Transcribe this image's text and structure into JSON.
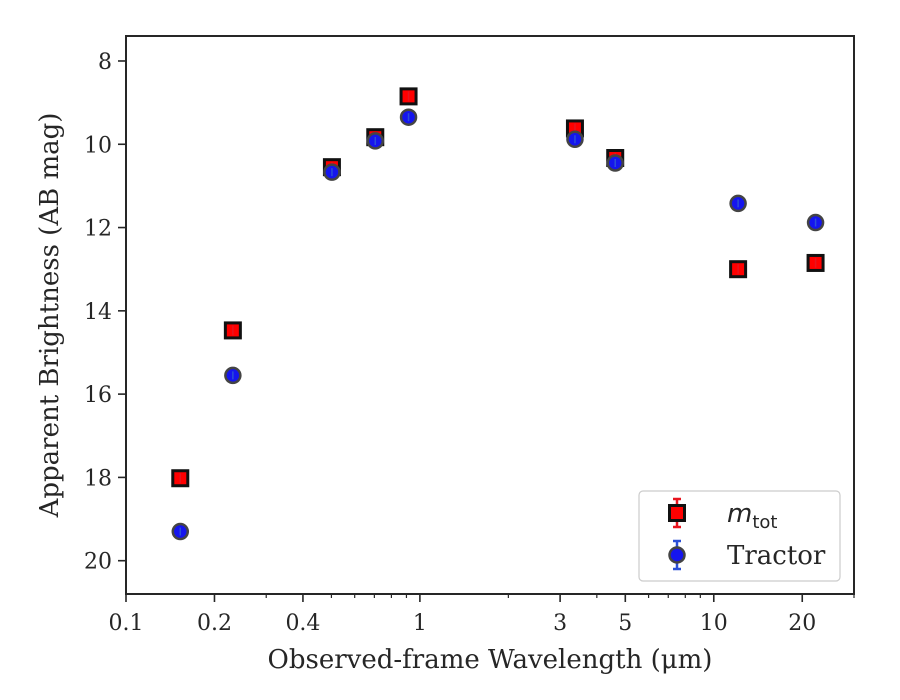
{
  "chart_data": {
    "type": "scatter",
    "xlabel": "Observed-frame Wavelength (μm)",
    "ylabel": "Apparent Brightness (AB mag)",
    "xscale": "log",
    "xlim": [
      0.1,
      30
    ],
    "ylim": [
      20.8,
      7.4
    ],
    "y_inverted": true,
    "grid": false,
    "legend_position": "bottom-right",
    "x_ticks": [
      {
        "value": 0.1,
        "label": "0.1"
      },
      {
        "value": 0.2,
        "label": "0.2"
      },
      {
        "value": 0.4,
        "label": "0.4"
      },
      {
        "value": 1,
        "label": "1"
      },
      {
        "value": 3,
        "label": "3"
      },
      {
        "value": 5,
        "label": "5"
      },
      {
        "value": 10,
        "label": "10"
      },
      {
        "value": 20,
        "label": "20"
      }
    ],
    "y_ticks": [
      {
        "value": 8,
        "label": "8"
      },
      {
        "value": 10,
        "label": "10"
      },
      {
        "value": 12,
        "label": "12"
      },
      {
        "value": 14,
        "label": "14"
      },
      {
        "value": 16,
        "label": "16"
      },
      {
        "value": 18,
        "label": "18"
      },
      {
        "value": 20,
        "label": "20"
      }
    ],
    "series": [
      {
        "name": "m_tot",
        "legend_main": "m",
        "legend_sub": "tot",
        "marker": "square",
        "color": "#ff0000",
        "edge_color": "#111111",
        "error_color": "#e8141e",
        "points": [
          {
            "x": 0.153,
            "y": 18.02
          },
          {
            "x": 0.231,
            "y": 14.47
          },
          {
            "x": 0.502,
            "y": 10.55
          },
          {
            "x": 0.705,
            "y": 9.83
          },
          {
            "x": 0.915,
            "y": 8.85
          },
          {
            "x": 3.37,
            "y": 9.62
          },
          {
            "x": 4.62,
            "y": 10.33
          },
          {
            "x": 12.1,
            "y": 13.0
          },
          {
            "x": 22.2,
            "y": 12.85
          }
        ]
      },
      {
        "name": "Tractor",
        "marker": "circle",
        "color": "#1515ee",
        "edge_color": "#444444",
        "error_color": "#2b4fd6",
        "points": [
          {
            "x": 0.153,
            "y": 19.3
          },
          {
            "x": 0.231,
            "y": 15.55
          },
          {
            "x": 0.502,
            "y": 10.67
          },
          {
            "x": 0.705,
            "y": 9.92
          },
          {
            "x": 0.915,
            "y": 9.35
          },
          {
            "x": 3.37,
            "y": 9.88
          },
          {
            "x": 4.62,
            "y": 10.45
          },
          {
            "x": 12.1,
            "y": 11.42
          },
          {
            "x": 22.2,
            "y": 11.88
          }
        ]
      }
    ]
  }
}
